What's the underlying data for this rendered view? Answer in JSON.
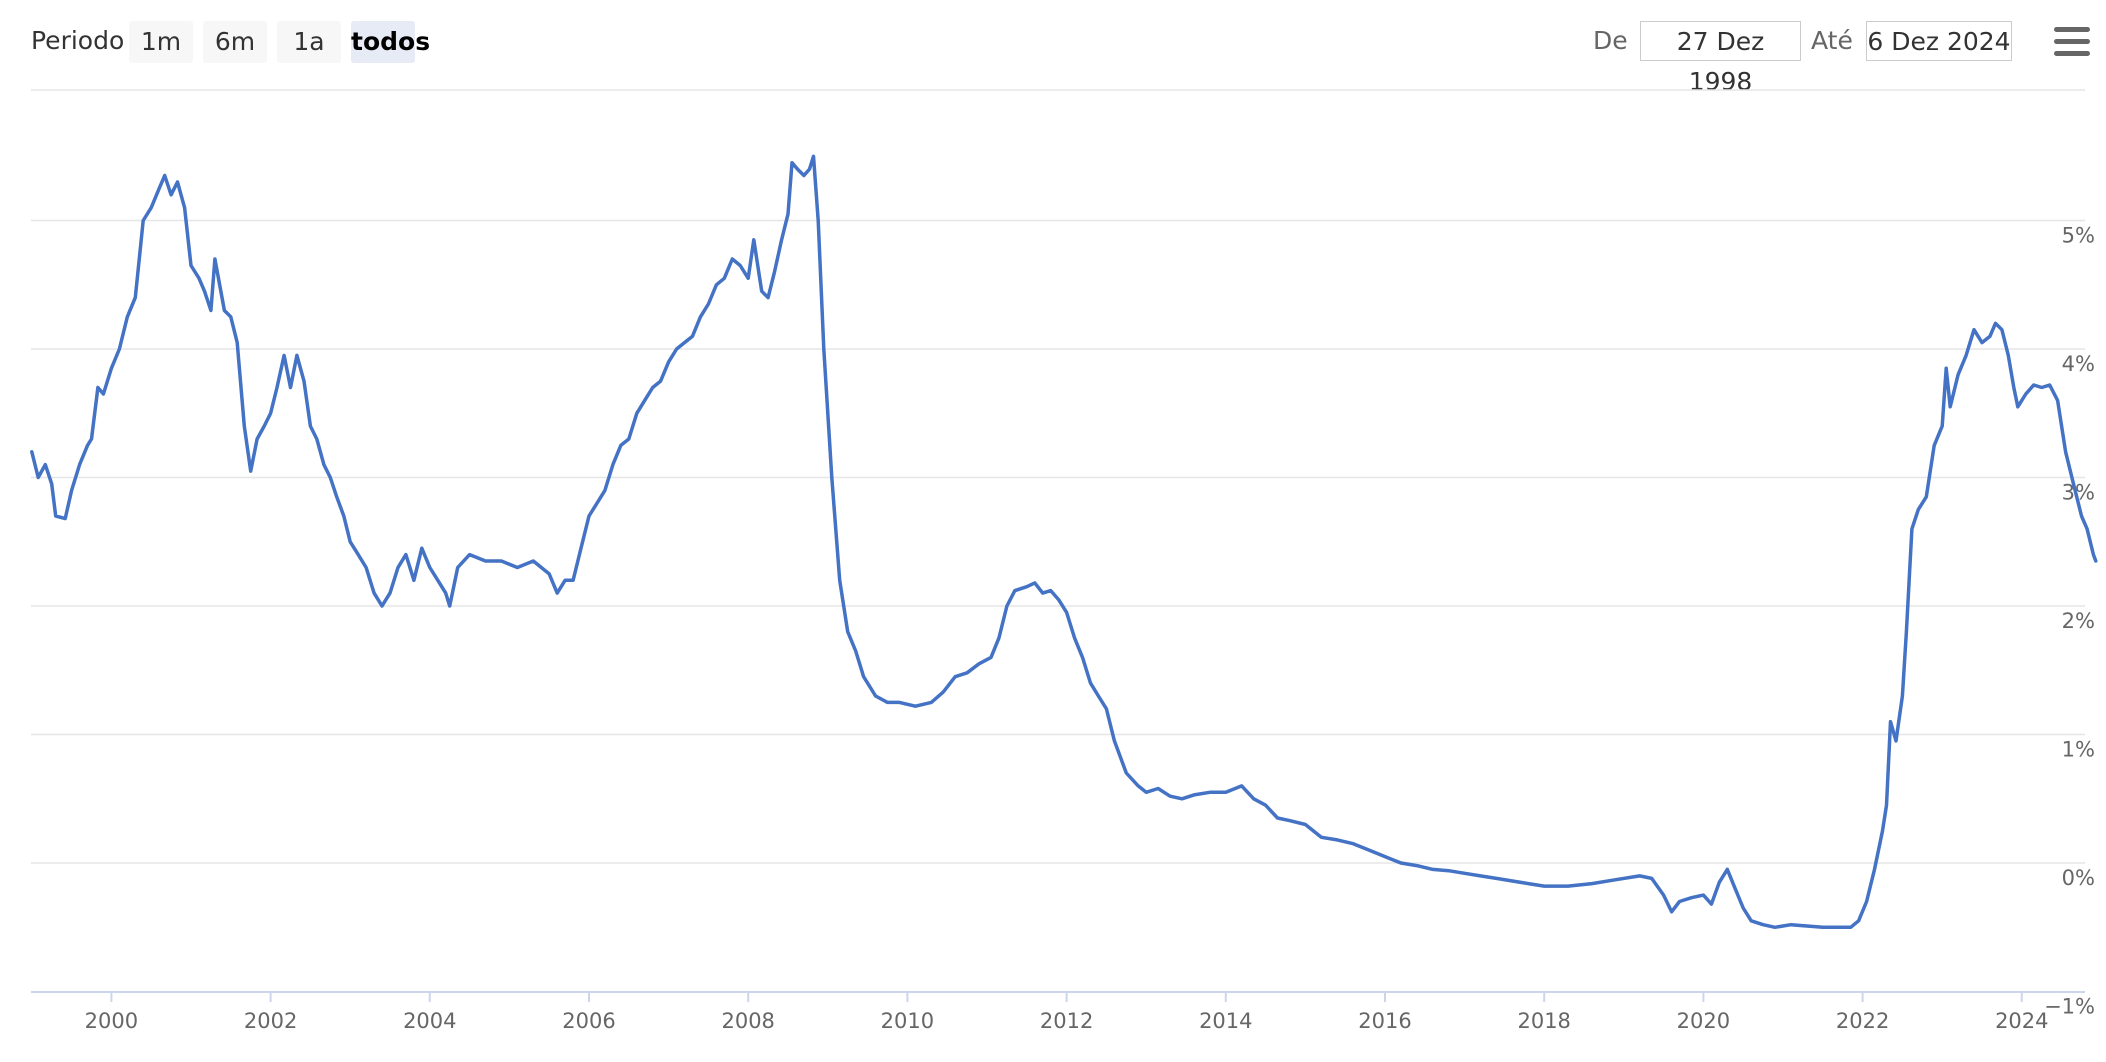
{
  "rangeSelector": {
    "label": "Periodo",
    "buttons": [
      "1m",
      "6m",
      "1a",
      "todos"
    ],
    "active": "todos",
    "fromLabel": "De",
    "fromDate": "27 Dez 1998",
    "toLabel": "Até",
    "toDate": "6 Dez 2024"
  },
  "colors": {
    "series": "#4472c4",
    "grid": "#e6e6e6",
    "axis": "#ccd6eb"
  },
  "icons": {
    "menu": "hamburger-menu-icon"
  },
  "chart_data": {
    "type": "line",
    "title": "",
    "xlabel": "",
    "ylabel": "",
    "xlim": [
      1998.99,
      2024.93
    ],
    "ylim": [
      -1,
      6
    ],
    "yticks": [
      -1,
      0,
      1,
      2,
      3,
      4,
      5
    ],
    "ytick_labels": [
      "−1%",
      "0%",
      "1%",
      "2%",
      "3%",
      "4%",
      "5%"
    ],
    "xticks": [
      2000,
      2002,
      2004,
      2006,
      2008,
      2010,
      2012,
      2014,
      2016,
      2018,
      2020,
      2022,
      2024
    ],
    "xtick_labels": [
      "2000",
      "2002",
      "2004",
      "2006",
      "2008",
      "2010",
      "2012",
      "2014",
      "2016",
      "2018",
      "2020",
      "2022",
      "2024"
    ],
    "grid": true,
    "y_axis_position": "right",
    "series": [
      {
        "values": [
          [
            1999.0,
            3.2
          ],
          [
            1999.08,
            3.0
          ],
          [
            1999.17,
            3.1
          ],
          [
            1999.25,
            2.95
          ],
          [
            1999.3,
            2.7
          ],
          [
            1999.42,
            2.68
          ],
          [
            1999.5,
            2.9
          ],
          [
            1999.6,
            3.1
          ],
          [
            1999.7,
            3.25
          ],
          [
            1999.75,
            3.3
          ],
          [
            1999.83,
            3.7
          ],
          [
            1999.9,
            3.65
          ],
          [
            2000.0,
            3.85
          ],
          [
            2000.1,
            4.0
          ],
          [
            2000.2,
            4.25
          ],
          [
            2000.3,
            4.4
          ],
          [
            2000.4,
            5.0
          ],
          [
            2000.5,
            5.1
          ],
          [
            2000.6,
            5.25
          ],
          [
            2000.67,
            5.35
          ],
          [
            2000.75,
            5.2
          ],
          [
            2000.83,
            5.3
          ],
          [
            2000.92,
            5.1
          ],
          [
            2001.0,
            4.65
          ],
          [
            2001.1,
            4.55
          ],
          [
            2001.17,
            4.45
          ],
          [
            2001.25,
            4.3
          ],
          [
            2001.3,
            4.7
          ],
          [
            2001.42,
            4.3
          ],
          [
            2001.5,
            4.25
          ],
          [
            2001.58,
            4.05
          ],
          [
            2001.67,
            3.4
          ],
          [
            2001.75,
            3.05
          ],
          [
            2001.83,
            3.3
          ],
          [
            2001.92,
            3.4
          ],
          [
            2002.0,
            3.5
          ],
          [
            2002.08,
            3.7
          ],
          [
            2002.17,
            3.95
          ],
          [
            2002.25,
            3.7
          ],
          [
            2002.33,
            3.95
          ],
          [
            2002.42,
            3.75
          ],
          [
            2002.5,
            3.4
          ],
          [
            2002.58,
            3.3
          ],
          [
            2002.67,
            3.1
          ],
          [
            2002.75,
            3.0
          ],
          [
            2002.83,
            2.85
          ],
          [
            2002.92,
            2.7
          ],
          [
            2003.0,
            2.5
          ],
          [
            2003.1,
            2.4
          ],
          [
            2003.2,
            2.3
          ],
          [
            2003.3,
            2.1
          ],
          [
            2003.4,
            2.0
          ],
          [
            2003.5,
            2.1
          ],
          [
            2003.6,
            2.3
          ],
          [
            2003.7,
            2.4
          ],
          [
            2003.8,
            2.2
          ],
          [
            2003.9,
            2.45
          ],
          [
            2004.0,
            2.3
          ],
          [
            2004.1,
            2.2
          ],
          [
            2004.2,
            2.1
          ],
          [
            2004.25,
            2.0
          ],
          [
            2004.35,
            2.3
          ],
          [
            2004.5,
            2.4
          ],
          [
            2004.7,
            2.35
          ],
          [
            2004.9,
            2.35
          ],
          [
            2005.1,
            2.3
          ],
          [
            2005.3,
            2.35
          ],
          [
            2005.5,
            2.25
          ],
          [
            2005.6,
            2.1
          ],
          [
            2005.7,
            2.2
          ],
          [
            2005.8,
            2.2
          ],
          [
            2005.9,
            2.45
          ],
          [
            2006.0,
            2.7
          ],
          [
            2006.1,
            2.8
          ],
          [
            2006.2,
            2.9
          ],
          [
            2006.3,
            3.1
          ],
          [
            2006.4,
            3.25
          ],
          [
            2006.5,
            3.3
          ],
          [
            2006.6,
            3.5
          ],
          [
            2006.7,
            3.6
          ],
          [
            2006.8,
            3.7
          ],
          [
            2006.9,
            3.75
          ],
          [
            2007.0,
            3.9
          ],
          [
            2007.1,
            4.0
          ],
          [
            2007.2,
            4.05
          ],
          [
            2007.3,
            4.1
          ],
          [
            2007.4,
            4.25
          ],
          [
            2007.5,
            4.35
          ],
          [
            2007.6,
            4.5
          ],
          [
            2007.7,
            4.55
          ],
          [
            2007.8,
            4.7
          ],
          [
            2007.9,
            4.65
          ],
          [
            2008.0,
            4.55
          ],
          [
            2008.07,
            4.85
          ],
          [
            2008.17,
            4.45
          ],
          [
            2008.25,
            4.4
          ],
          [
            2008.33,
            4.6
          ],
          [
            2008.42,
            4.85
          ],
          [
            2008.5,
            5.05
          ],
          [
            2008.55,
            5.45
          ],
          [
            2008.62,
            5.4
          ],
          [
            2008.7,
            5.35
          ],
          [
            2008.77,
            5.4
          ],
          [
            2008.82,
            5.5
          ],
          [
            2008.88,
            5.0
          ],
          [
            2008.95,
            4.0
          ],
          [
            2009.05,
            3.0
          ],
          [
            2009.15,
            2.2
          ],
          [
            2009.25,
            1.8
          ],
          [
            2009.35,
            1.65
          ],
          [
            2009.45,
            1.45
          ],
          [
            2009.6,
            1.3
          ],
          [
            2009.75,
            1.25
          ],
          [
            2009.9,
            1.25
          ],
          [
            2010.1,
            1.22
          ],
          [
            2010.3,
            1.25
          ],
          [
            2010.45,
            1.33
          ],
          [
            2010.6,
            1.45
          ],
          [
            2010.75,
            1.48
          ],
          [
            2010.9,
            1.55
          ],
          [
            2011.05,
            1.6
          ],
          [
            2011.15,
            1.75
          ],
          [
            2011.25,
            2.0
          ],
          [
            2011.35,
            2.12
          ],
          [
            2011.5,
            2.15
          ],
          [
            2011.6,
            2.18
          ],
          [
            2011.7,
            2.1
          ],
          [
            2011.8,
            2.12
          ],
          [
            2011.9,
            2.05
          ],
          [
            2012.0,
            1.95
          ],
          [
            2012.1,
            1.75
          ],
          [
            2012.2,
            1.6
          ],
          [
            2012.3,
            1.4
          ],
          [
            2012.4,
            1.3
          ],
          [
            2012.5,
            1.2
          ],
          [
            2012.6,
            0.95
          ],
          [
            2012.75,
            0.7
          ],
          [
            2012.9,
            0.6
          ],
          [
            2013.0,
            0.55
          ],
          [
            2013.15,
            0.58
          ],
          [
            2013.3,
            0.52
          ],
          [
            2013.45,
            0.5
          ],
          [
            2013.6,
            0.53
          ],
          [
            2013.8,
            0.55
          ],
          [
            2014.0,
            0.55
          ],
          [
            2014.2,
            0.6
          ],
          [
            2014.35,
            0.5
          ],
          [
            2014.5,
            0.45
          ],
          [
            2014.65,
            0.35
          ],
          [
            2014.8,
            0.33
          ],
          [
            2015.0,
            0.3
          ],
          [
            2015.2,
            0.2
          ],
          [
            2015.4,
            0.18
          ],
          [
            2015.6,
            0.15
          ],
          [
            2015.8,
            0.1
          ],
          [
            2016.0,
            0.05
          ],
          [
            2016.2,
            0.0
          ],
          [
            2016.4,
            -0.02
          ],
          [
            2016.6,
            -0.05
          ],
          [
            2016.8,
            -0.06
          ],
          [
            2017.0,
            -0.08
          ],
          [
            2017.2,
            -0.1
          ],
          [
            2017.4,
            -0.12
          ],
          [
            2017.6,
            -0.14
          ],
          [
            2017.8,
            -0.16
          ],
          [
            2018.0,
            -0.18
          ],
          [
            2018.3,
            -0.18
          ],
          [
            2018.6,
            -0.16
          ],
          [
            2018.9,
            -0.13
          ],
          [
            2019.2,
            -0.1
          ],
          [
            2019.35,
            -0.12
          ],
          [
            2019.5,
            -0.25
          ],
          [
            2019.6,
            -0.38
          ],
          [
            2019.7,
            -0.3
          ],
          [
            2019.85,
            -0.27
          ],
          [
            2020.0,
            -0.25
          ],
          [
            2020.1,
            -0.32
          ],
          [
            2020.2,
            -0.15
          ],
          [
            2020.3,
            -0.05
          ],
          [
            2020.4,
            -0.2
          ],
          [
            2020.5,
            -0.35
          ],
          [
            2020.6,
            -0.45
          ],
          [
            2020.75,
            -0.48
          ],
          [
            2020.9,
            -0.5
          ],
          [
            2021.1,
            -0.48
          ],
          [
            2021.3,
            -0.49
          ],
          [
            2021.5,
            -0.5
          ],
          [
            2021.7,
            -0.5
          ],
          [
            2021.85,
            -0.5
          ],
          [
            2021.95,
            -0.45
          ],
          [
            2022.05,
            -0.3
          ],
          [
            2022.15,
            -0.05
          ],
          [
            2022.25,
            0.25
          ],
          [
            2022.3,
            0.45
          ],
          [
            2022.35,
            1.1
          ],
          [
            2022.42,
            0.95
          ],
          [
            2022.5,
            1.3
          ],
          [
            2022.55,
            1.8
          ],
          [
            2022.62,
            2.6
          ],
          [
            2022.7,
            2.75
          ],
          [
            2022.8,
            2.85
          ],
          [
            2022.9,
            3.25
          ],
          [
            2023.0,
            3.4
          ],
          [
            2023.05,
            3.85
          ],
          [
            2023.1,
            3.55
          ],
          [
            2023.2,
            3.8
          ],
          [
            2023.3,
            3.95
          ],
          [
            2023.4,
            4.15
          ],
          [
            2023.5,
            4.05
          ],
          [
            2023.6,
            4.1
          ],
          [
            2023.67,
            4.2
          ],
          [
            2023.75,
            4.15
          ],
          [
            2023.83,
            3.95
          ],
          [
            2023.9,
            3.7
          ],
          [
            2023.95,
            3.55
          ],
          [
            2024.05,
            3.65
          ],
          [
            2024.15,
            3.72
          ],
          [
            2024.25,
            3.7
          ],
          [
            2024.35,
            3.72
          ],
          [
            2024.45,
            3.6
          ],
          [
            2024.55,
            3.2
          ],
          [
            2024.65,
            2.95
          ],
          [
            2024.75,
            2.7
          ],
          [
            2024.82,
            2.6
          ],
          [
            2024.9,
            2.4
          ],
          [
            2024.93,
            2.35
          ]
        ]
      }
    ]
  }
}
